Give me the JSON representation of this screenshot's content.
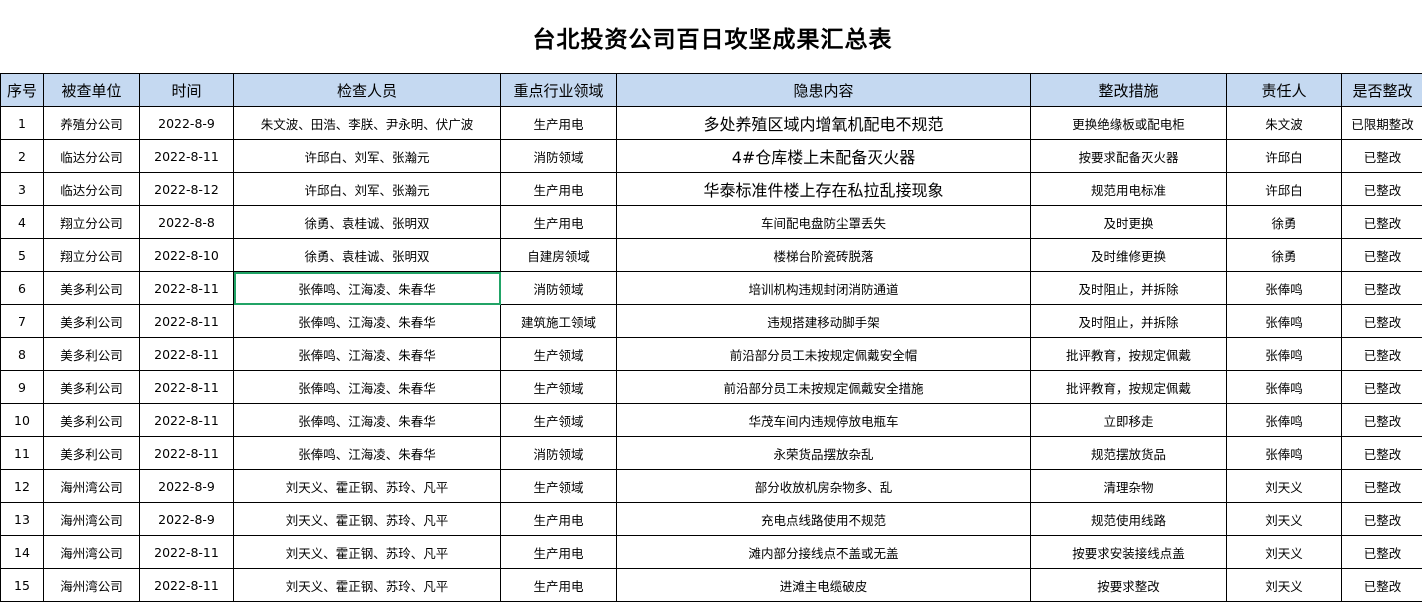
{
  "title": "台北投资公司百日攻坚成果汇总表",
  "columns": [
    "序号",
    "被查单位",
    "时间",
    "检查人员",
    "重点行业领域",
    "隐患内容",
    "整改措施",
    "责任人",
    "是否整改"
  ],
  "accent_selection_color": "#21a366",
  "header_bg": "#c5d9f1",
  "selected_cell": {
    "row": 6,
    "column": "检查人员"
  },
  "rows": [
    [
      "1",
      "养殖分公司",
      "2022-8-9",
      "朱文波、田浩、李朕、尹永明、伏广波",
      "生产用电",
      "多处养殖区域内增氧机配电不规范",
      "更换绝缘板或配电柜",
      "朱文波",
      "已限期整改"
    ],
    [
      "2",
      "临达分公司",
      "2022-8-11",
      "许邱白、刘军、张瀚元",
      "消防领域",
      "4#仓库楼上未配备灭火器",
      "按要求配备灭火器",
      "许邱白",
      "已整改"
    ],
    [
      "3",
      "临达分公司",
      "2022-8-12",
      "许邱白、刘军、张瀚元",
      "生产用电",
      "华泰标准件楼上存在私拉乱接现象",
      "规范用电标准",
      "许邱白",
      "已整改"
    ],
    [
      "4",
      "翔立分公司",
      "2022-8-8",
      "徐勇、袁桂诚、张明双",
      "生产用电",
      "车间配电盘防尘罩丢失",
      "及时更换",
      "徐勇",
      "已整改"
    ],
    [
      "5",
      "翔立分公司",
      "2022-8-10",
      "徐勇、袁桂诚、张明双",
      "自建房领域",
      "楼梯台阶瓷砖脱落",
      "及时维修更换",
      "徐勇",
      "已整改"
    ],
    [
      "6",
      "美多利公司",
      "2022-8-11",
      "张俸鸣、江海凌、朱春华",
      "消防领域",
      "培训机构违规封闭消防通道",
      "及时阻止，并拆除",
      "张俸鸣",
      "已整改"
    ],
    [
      "7",
      "美多利公司",
      "2022-8-11",
      "张俸鸣、江海凌、朱春华",
      "建筑施工领域",
      "违规搭建移动脚手架",
      "及时阻止，并拆除",
      "张俸鸣",
      "已整改"
    ],
    [
      "8",
      "美多利公司",
      "2022-8-11",
      "张俸鸣、江海凌、朱春华",
      "生产领域",
      "前沿部分员工未按规定佩戴安全帽",
      "批评教育，按规定佩戴",
      "张俸鸣",
      "已整改"
    ],
    [
      "9",
      "美多利公司",
      "2022-8-11",
      "张俸鸣、江海凌、朱春华",
      "生产领域",
      "前沿部分员工未按规定佩戴安全措施",
      "批评教育，按规定佩戴",
      "张俸鸣",
      "已整改"
    ],
    [
      "10",
      "美多利公司",
      "2022-8-11",
      "张俸鸣、江海凌、朱春华",
      "生产领域",
      "华茂车间内违规停放电瓶车",
      "立即移走",
      "张俸鸣",
      "已整改"
    ],
    [
      "11",
      "美多利公司",
      "2022-8-11",
      "张俸鸣、江海凌、朱春华",
      "消防领域",
      "永荣货品摆放杂乱",
      "规范摆放货品",
      "张俸鸣",
      "已整改"
    ],
    [
      "12",
      "海州湾公司",
      "2022-8-9",
      "刘天义、霍正钢、苏玲、凡平",
      "生产领域",
      "部分收放机房杂物多、乱",
      "清理杂物",
      "刘天义",
      "已整改"
    ],
    [
      "13",
      "海州湾公司",
      "2022-8-9",
      "刘天义、霍正钢、苏玲、凡平",
      "生产用电",
      "充电点线路使用不规范",
      "规范使用线路",
      "刘天义",
      "已整改"
    ],
    [
      "14",
      "海州湾公司",
      "2022-8-11",
      "刘天义、霍正钢、苏玲、凡平",
      "生产用电",
      "滩内部分接线点不盖或无盖",
      "按要求安装接线点盖",
      "刘天义",
      "已整改"
    ],
    [
      "15",
      "海州湾公司",
      "2022-8-11",
      "刘天义、霍正钢、苏玲、凡平",
      "生产用电",
      "进滩主电缆破皮",
      "按要求整改",
      "刘天义",
      "已整改"
    ]
  ]
}
